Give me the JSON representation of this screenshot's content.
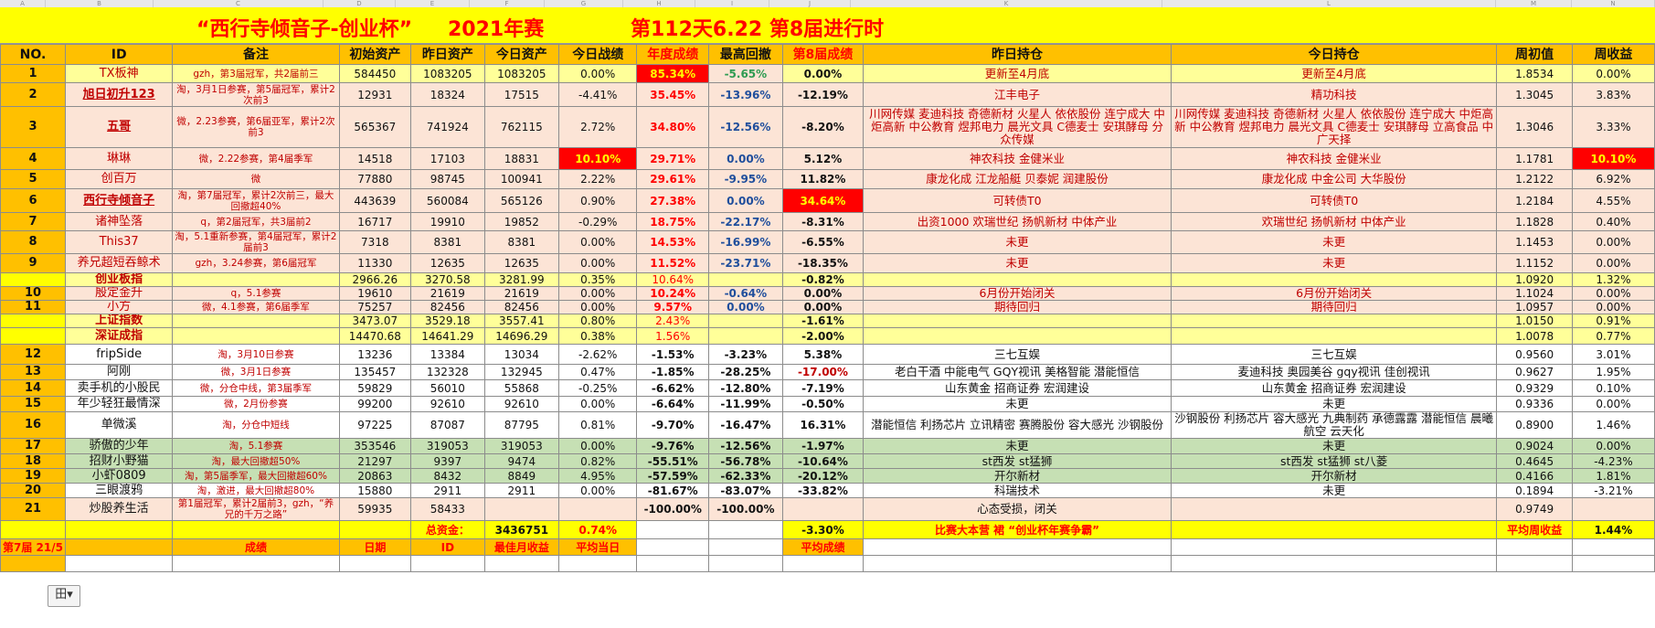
{
  "column_letters": [
    "A",
    "B",
    "C",
    "D",
    "E",
    "F",
    "G",
    "H",
    "I",
    "J",
    "K",
    "L",
    "M",
    "N"
  ],
  "title": {
    "name": "“西行寺倾音子-创业杯”",
    "year": "2021年赛",
    "progress": "第112天6.22  第8届进行时"
  },
  "headers": [
    "NO.",
    "ID",
    "备注",
    "初始资产",
    "昨日资产",
    "今日资产",
    "今日战绩",
    "年度成绩",
    "最高回撤",
    "第8届成绩",
    "昨日持仓",
    "今日持仓",
    "周初值",
    "周收益"
  ],
  "rows": [
    {
      "no": "1",
      "id": "TX板神",
      "remark": "gzh，第3届冠军，共2届前三",
      "init": "584450",
      "yest": "1083205",
      "today": "1083205",
      "daily": "0.00%",
      "annual": "85.34%",
      "dd": "-5.65%",
      "s8": "0.00%",
      "yhold": "更新至4月底",
      "thold": "更新至4月底",
      "wk": "1.8534",
      "wret": "0.00%"
    },
    {
      "no": "2",
      "id": "旭日初升123",
      "remark": "淘，3月1日参赛，第5届冠军，累计2次前3",
      "init": "12931",
      "yest": "18324",
      "today": "17515",
      "daily": "-4.41%",
      "annual": "35.45%",
      "dd": "-13.96%",
      "s8": "-12.19%",
      "yhold": "江丰电子",
      "thold": "精功科技",
      "wk": "1.3045",
      "wret": "3.83%"
    },
    {
      "no": "3",
      "id": "五哥",
      "remark": "微，2.23参赛，第6届亚军，累计2次前3",
      "init": "565367",
      "yest": "741924",
      "today": "762115",
      "daily": "2.72%",
      "annual": "34.80%",
      "dd": "-12.56%",
      "s8": "-8.20%",
      "yhold": "川网传媒 麦迪科技 奇德新材 火星人 依依股份 连宁成大 中炬高新 中公教育 煜邦电力 晨光文具 C德麦士 安琪酵母 分众传媒",
      "thold": "川网传媒 麦迪科技 奇德新材 火星人 依依股份 连宁成大 中炬高新 中公教育 煜邦电力 晨光文具 C德麦士 安琪酵母 立高食品 中广天择",
      "wk": "1.3046",
      "wret": "3.33%"
    },
    {
      "no": "4",
      "id": "琳琳",
      "remark": "微，2.22参赛，第4届季军",
      "init": "14518",
      "yest": "17103",
      "today": "18831",
      "daily": "10.10%",
      "annual": "29.71%",
      "dd": "0.00%",
      "s8": "5.12%",
      "yhold": "神农科技 金健米业",
      "thold": "神农科技 金健米业",
      "wk": "1.1781",
      "wret": "10.10%"
    },
    {
      "no": "5",
      "id": "创百万",
      "remark": "微",
      "init": "77880",
      "yest": "98745",
      "today": "100941",
      "daily": "2.22%",
      "annual": "29.61%",
      "dd": "-9.95%",
      "s8": "11.82%",
      "yhold": "康龙化成 江龙船艇 贝泰妮 润建股份",
      "thold": "康龙化成 中金公司 大华股份",
      "wk": "1.2122",
      "wret": "6.92%"
    },
    {
      "no": "6",
      "id": "西行寺倾音子",
      "remark": "淘，第7届冠军，累计2次前三，最大回撤超40%",
      "init": "443639",
      "yest": "560084",
      "today": "565126",
      "daily": "0.90%",
      "annual": "27.38%",
      "dd": "0.00%",
      "s8": "34.64%",
      "yhold": "可转债T0",
      "thold": "可转债T0",
      "wk": "1.2184",
      "wret": "4.55%"
    },
    {
      "no": "7",
      "id": "诸神坠落",
      "remark": "q，第2届冠军，共3届前2",
      "init": "16717",
      "yest": "19910",
      "today": "19852",
      "daily": "-0.29%",
      "annual": "18.75%",
      "dd": "-22.17%",
      "s8": "-8.31%",
      "yhold": "出资1000 欢瑞世纪 扬帆新材 中体产业",
      "thold": "欢瑞世纪 扬帆新材 中体产业",
      "wk": "1.1828",
      "wret": "0.40%"
    },
    {
      "no": "8",
      "id": "This37",
      "remark": "淘，5.1重新参赛，第4届冠军，累计2届前3",
      "init": "7318",
      "yest": "8381",
      "today": "8381",
      "daily": "0.00%",
      "annual": "14.53%",
      "dd": "-16.99%",
      "s8": "-6.55%",
      "yhold": "未更",
      "thold": "未更",
      "wk": "1.1453",
      "wret": "0.00%"
    },
    {
      "no": "9",
      "id": "养兄超短吞鲸术",
      "remark": "gzh，3.24参赛，第6届冠军",
      "init": "11330",
      "yest": "12635",
      "today": "12635",
      "daily": "0.00%",
      "annual": "11.52%",
      "dd": "-23.71%",
      "s8": "-18.35%",
      "yhold": "未更",
      "thold": "未更",
      "wk": "1.1152",
      "wret": "0.00%"
    },
    {
      "no": "",
      "id": "创业板指",
      "remark": "",
      "init": "2966.26",
      "yest": "3270.58",
      "today": "3281.99",
      "daily": "0.35%",
      "annual": "10.64%",
      "dd": "",
      "s8": "-0.82%",
      "yhold": "",
      "thold": "",
      "wk": "1.0920",
      "wret": "1.32%"
    },
    {
      "no": "10",
      "id": "殷定金升",
      "remark": "q，5.1参赛",
      "init": "19610",
      "yest": "21619",
      "today": "21619",
      "daily": "0.00%",
      "annual": "10.24%",
      "dd": "-0.64%",
      "s8": "0.00%",
      "yhold": "6月份开始闭关",
      "thold": "6月份开始闭关",
      "wk": "1.1024",
      "wret": "0.00%"
    },
    {
      "no": "11",
      "id": "小方",
      "remark": "微，4.1参赛，第6届季军",
      "init": "75257",
      "yest": "82456",
      "today": "82456",
      "daily": "0.00%",
      "annual": "9.57%",
      "dd": "0.00%",
      "s8": "0.00%",
      "yhold": "期待回归",
      "thold": "期待回归",
      "wk": "1.0957",
      "wret": "0.00%"
    },
    {
      "no": "",
      "id": "上证指数",
      "remark": "",
      "init": "3473.07",
      "yest": "3529.18",
      "today": "3557.41",
      "daily": "0.80%",
      "annual": "2.43%",
      "dd": "",
      "s8": "-1.61%",
      "yhold": "",
      "thold": "",
      "wk": "1.0150",
      "wret": "0.91%"
    },
    {
      "no": "",
      "id": "深证成指",
      "remark": "",
      "init": "14470.68",
      "yest": "14641.29",
      "today": "14696.29",
      "daily": "0.38%",
      "annual": "1.56%",
      "dd": "",
      "s8": "-2.00%",
      "yhold": "",
      "thold": "",
      "wk": "1.0078",
      "wret": "0.77%"
    },
    {
      "no": "12",
      "id": "fripSide",
      "remark": "淘，3月10日参赛",
      "init": "13236",
      "yest": "13384",
      "today": "13034",
      "daily": "-2.62%",
      "annual": "-1.53%",
      "dd": "-3.23%",
      "s8": "5.38%",
      "yhold": "三七互娱",
      "thold": "三七互娱",
      "wk": "0.9560",
      "wret": "3.01%"
    },
    {
      "no": "13",
      "id": "阿刚",
      "remark": "微，3月1日参赛",
      "init": "135457",
      "yest": "132328",
      "today": "132945",
      "daily": "0.47%",
      "annual": "-1.85%",
      "dd": "-28.25%",
      "s8": "-17.00%",
      "yhold": "老白干酒 中能电气 GQY视讯 美格智能 潜能恒信",
      "thold": "麦迪科技 奥园美谷 gqy视讯 佳创视讯",
      "wk": "0.9627",
      "wret": "1.95%"
    },
    {
      "no": "14",
      "id": "卖手机的小股民",
      "remark": "微，分仓中线，第3届季军",
      "init": "59829",
      "yest": "56010",
      "today": "55868",
      "daily": "-0.25%",
      "annual": "-6.62%",
      "dd": "-12.80%",
      "s8": "-7.19%",
      "yhold": "山东黄金 招商证券 宏润建设",
      "thold": "山东黄金 招商证券 宏润建设",
      "wk": "0.9329",
      "wret": "0.10%"
    },
    {
      "no": "15",
      "id": "年少轻狂最情深",
      "remark": "微，2月份参赛",
      "init": "99200",
      "yest": "92610",
      "today": "92610",
      "daily": "0.00%",
      "annual": "-6.64%",
      "dd": "-11.99%",
      "s8": "-0.50%",
      "yhold": "未更",
      "thold": "未更",
      "wk": "0.9336",
      "wret": "0.00%"
    },
    {
      "no": "16",
      "id": "单微溪",
      "remark": "淘，分仓中短线",
      "init": "97225",
      "yest": "87087",
      "today": "87795",
      "daily": "0.81%",
      "annual": "-9.70%",
      "dd": "-16.47%",
      "s8": "16.31%",
      "yhold": "潜能恒信 利扬芯片 立讯精密 赛腾股份 容大感光 沙钢股份",
      "thold": "沙钢股份 利扬芯片 容大感光 九典制药 承德露露 潜能恒信 晨曦航空 云天化",
      "wk": "0.8900",
      "wret": "1.46%"
    },
    {
      "no": "17",
      "id": "骄傲的少年",
      "remark": "淘，5.1参赛",
      "init": "353546",
      "yest": "319053",
      "today": "319053",
      "daily": "0.00%",
      "annual": "-9.76%",
      "dd": "-12.56%",
      "s8": "-1.97%",
      "yhold": "未更",
      "thold": "未更",
      "wk": "0.9024",
      "wret": "0.00%"
    },
    {
      "no": "18",
      "id": "招财小野猫",
      "remark": "淘，最大回撤超50%",
      "init": "21297",
      "yest": "9397",
      "today": "9474",
      "daily": "0.82%",
      "annual": "-55.51%",
      "dd": "-56.78%",
      "s8": "-10.64%",
      "yhold": "st西发 st猛狮",
      "thold": "st西发 st猛狮 st八菱",
      "wk": "0.4645",
      "wret": "-4.23%"
    },
    {
      "no": "19",
      "id": "小虾0809",
      "remark": "淘，第5届季军，最大回撤超60%",
      "init": "20863",
      "yest": "8432",
      "today": "8849",
      "daily": "4.95%",
      "annual": "-57.59%",
      "dd": "-62.33%",
      "s8": "-20.12%",
      "yhold": "开尔新材",
      "thold": "开尔新材",
      "wk": "0.4166",
      "wret": "1.81%"
    },
    {
      "no": "20",
      "id": "三眼渡鸦",
      "remark": "淘，激进，最大回撤超80%",
      "init": "15880",
      "yest": "2911",
      "today": "2911",
      "daily": "0.00%",
      "annual": "-81.67%",
      "dd": "-83.07%",
      "s8": "-33.82%",
      "yhold": "科瑞技术",
      "thold": "未更",
      "wk": "0.1894",
      "wret": "-3.21%"
    },
    {
      "no": "21",
      "id": "炒股养生活",
      "remark": "第1届冠军，累计2届前3，gzh，“养兄的千万之路”",
      "init": "59935",
      "yest": "58433",
      "today": "",
      "daily": "",
      "annual": "-100.00%",
      "dd": "-100.00%",
      "s8": "",
      "yhold": "心态受损，闭关",
      "thold": "",
      "wk": "0.9749",
      "wret": ""
    }
  ],
  "summary": {
    "total_label": "总资金：",
    "total_value": "3436751",
    "total_daily": "0.74%",
    "s8_avg": "-3.30%",
    "slogan": "比赛大本营  裙  “创业杯年赛争霸”",
    "avg_week_label": "平均周收益",
    "avg_week_value": "1.44%"
  },
  "footer": {
    "label": "第7届 21/5",
    "h1": "成绩",
    "h2": "日期",
    "h3": "ID",
    "h4": "最佳月收益",
    "h5": "平均当日",
    "h6": "平均成绩"
  },
  "filter_button": "田▾",
  "colors": {
    "title_bg": "#ffff00",
    "header_bg": "#ffc000",
    "top_red": "#ff0000",
    "pink": "#fce4d6",
    "green": "#c6e0b4"
  }
}
